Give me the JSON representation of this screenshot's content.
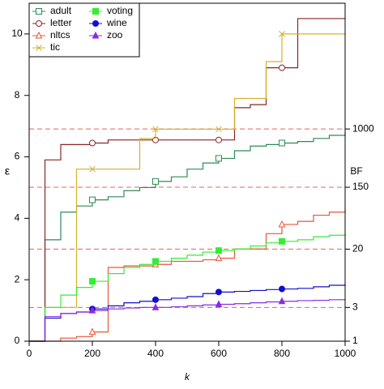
{
  "chart_data": {
    "type": "line",
    "step": true,
    "xlabel": "k",
    "ylabel": "ε",
    "y2label": "BF",
    "x": [
      0,
      50,
      100,
      150,
      200,
      250,
      300,
      350,
      400,
      450,
      500,
      550,
      600,
      650,
      700,
      750,
      800,
      850,
      900,
      950,
      1000
    ],
    "xlim": [
      0,
      1000
    ],
    "xticks": [
      0,
      200,
      400,
      600,
      800,
      1000
    ],
    "ylim": [
      0,
      11
    ],
    "yticks": [
      0,
      2,
      4,
      6,
      8,
      10
    ],
    "y2lim": [
      1,
      59874.14
    ],
    "y2log": "e",
    "y2ticks": [
      1,
      3,
      20,
      150,
      1000
    ],
    "y2grid": true,
    "y2grid_color": "#e86060",
    "marker_x": [
      200,
      400,
      600,
      800
    ],
    "legend": "upper left",
    "series": [
      {
        "name": "adult",
        "color": "#2e8b57",
        "marker": "square-open",
        "values": [
          0,
          3.3,
          4.2,
          4.4,
          4.6,
          4.7,
          4.9,
          5.0,
          5.2,
          5.35,
          5.6,
          5.8,
          5.95,
          6.2,
          6.35,
          6.4,
          6.45,
          6.5,
          6.6,
          6.7,
          6.8
        ]
      },
      {
        "name": "letter",
        "color": "#8b2323",
        "marker": "circle-open",
        "values": [
          0,
          5.9,
          6.4,
          6.4,
          6.45,
          6.55,
          6.55,
          6.55,
          6.55,
          6.55,
          6.55,
          6.55,
          6.55,
          7.6,
          7.7,
          8.9,
          8.9,
          10.5,
          10.5,
          10.5,
          10.5
        ]
      },
      {
        "name": "nltcs",
        "color": "#e8553a",
        "marker": "triangle-open",
        "values": [
          0,
          0,
          0.1,
          0.15,
          0.3,
          2.4,
          2.45,
          2.45,
          2.5,
          2.6,
          2.6,
          2.65,
          2.7,
          3.0,
          3.0,
          3.5,
          3.8,
          3.9,
          4.1,
          4.2,
          4.3
        ]
      },
      {
        "name": "tic",
        "color": "#d4b030",
        "marker": "x",
        "values": [
          0,
          1.1,
          1.1,
          5.6,
          5.6,
          5.6,
          5.6,
          6.6,
          6.9,
          6.9,
          6.9,
          6.9,
          6.9,
          7.9,
          7.9,
          9.1,
          10,
          10,
          10,
          10,
          10
        ]
      },
      {
        "name": "voting",
        "color": "#33ee33",
        "marker": "square",
        "values": [
          0,
          1.1,
          1.5,
          1.75,
          1.95,
          2.2,
          2.4,
          2.5,
          2.6,
          2.7,
          2.8,
          2.9,
          2.95,
          3.0,
          3.1,
          3.2,
          3.25,
          3.3,
          3.4,
          3.45,
          3.5
        ]
      },
      {
        "name": "wine",
        "color": "#1010cc",
        "marker": "circle",
        "values": [
          0,
          0.75,
          0.9,
          0.95,
          1.05,
          1.15,
          1.25,
          1.3,
          1.35,
          1.4,
          1.45,
          1.55,
          1.6,
          1.62,
          1.65,
          1.68,
          1.7,
          1.72,
          1.77,
          1.82,
          1.87
        ]
      },
      {
        "name": "zoo",
        "color": "#8a2be2",
        "marker": "triangle",
        "values": [
          0,
          0.8,
          0.9,
          0.95,
          1.0,
          1.05,
          1.08,
          1.1,
          1.1,
          1.12,
          1.15,
          1.18,
          1.2,
          1.22,
          1.25,
          1.28,
          1.3,
          1.32,
          1.33,
          1.35,
          1.37
        ]
      }
    ]
  }
}
